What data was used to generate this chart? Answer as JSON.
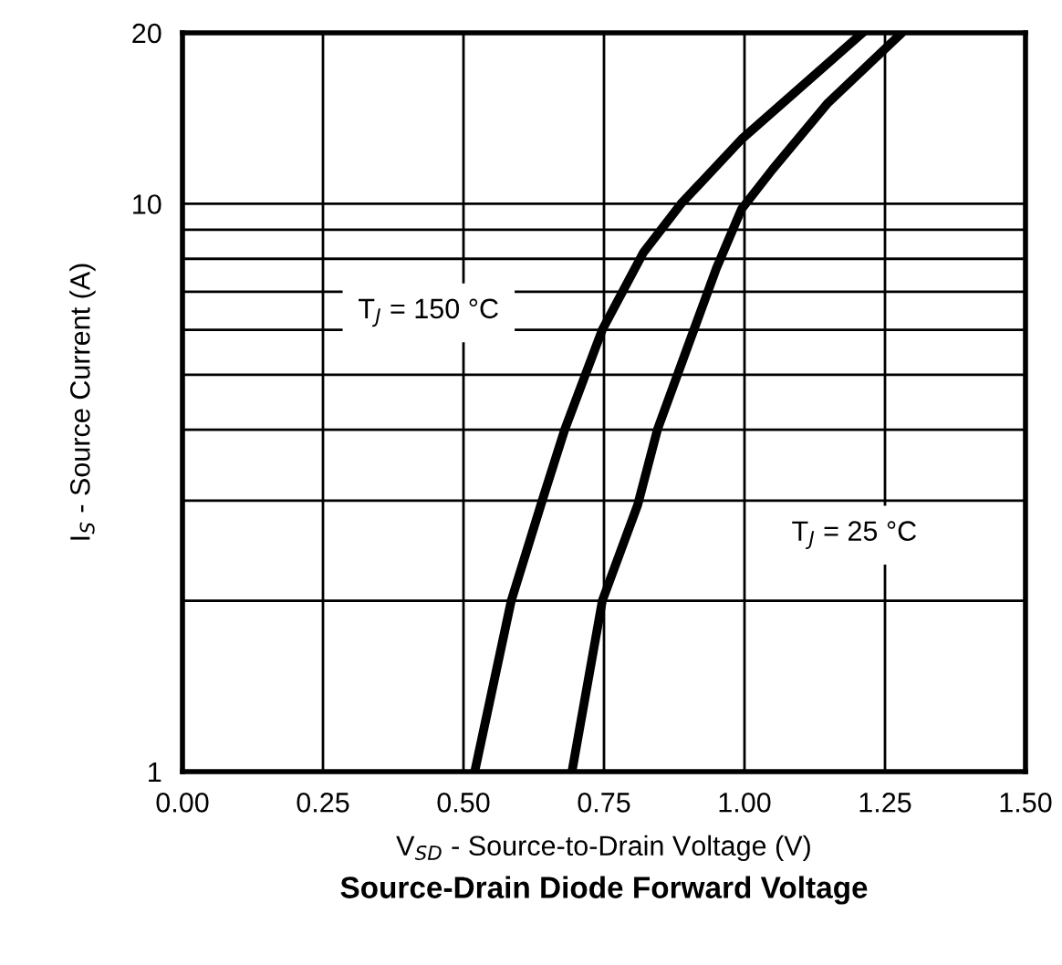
{
  "chart_data": {
    "type": "line",
    "title": "Source-Drain Diode Forward Voltage",
    "xlabel": "V$_{SD}$ - Source-to-Drain Voltage (V)",
    "ylabel": "I$_{S}$ - Source Current (A)",
    "series": [
      {
        "color": "#000000",
        "x": [
          0.52,
          0.585,
          0.64,
          0.68,
          0.747,
          0.82,
          0.887,
          0.995,
          1.21
        ],
        "values": [
          1,
          2,
          3,
          4,
          6,
          8.2,
          10,
          13,
          20
        ]
      },
      {
        "color": "#000000",
        "x": [
          0.693,
          0.747,
          0.81,
          0.845,
          0.91,
          0.95,
          0.995,
          1.05,
          1.147,
          1.28
        ],
        "values": [
          1,
          2,
          2.95,
          4,
          6,
          7.7,
          9.8,
          11.5,
          15,
          20
        ]
      }
    ],
    "annotations": [
      "T$_{J}$ = 150 °C",
      "T$_{J}$ = 25 °C"
    ],
    "log": "y",
    "xlim": [
      0,
      1.5
    ],
    "ylim": [
      1,
      20
    ],
    "xticks": [
      {
        "value": 0,
        "label": "0.00"
      },
      0.25,
      {
        "value": 0.5,
        "label": "0.50"
      },
      0.75,
      {
        "value": 1,
        "label": "1.00"
      },
      1.25,
      {
        "value": 1.5,
        "label": "1.50"
      }
    ],
    "yticks": [
      1,
      {
        "value": 2,
        "label": null
      },
      {
        "value": 3,
        "label": null
      },
      {
        "value": 4,
        "label": null
      },
      {
        "value": 5,
        "label": null
      },
      {
        "value": 6,
        "label": null
      },
      {
        "value": 7,
        "label": null
      },
      {
        "value": 8,
        "label": null
      },
      {
        "value": 9,
        "label": null
      },
      10,
      20
    ],
    "grid": true,
    "marker": "none",
    "line_style": "solid"
  }
}
